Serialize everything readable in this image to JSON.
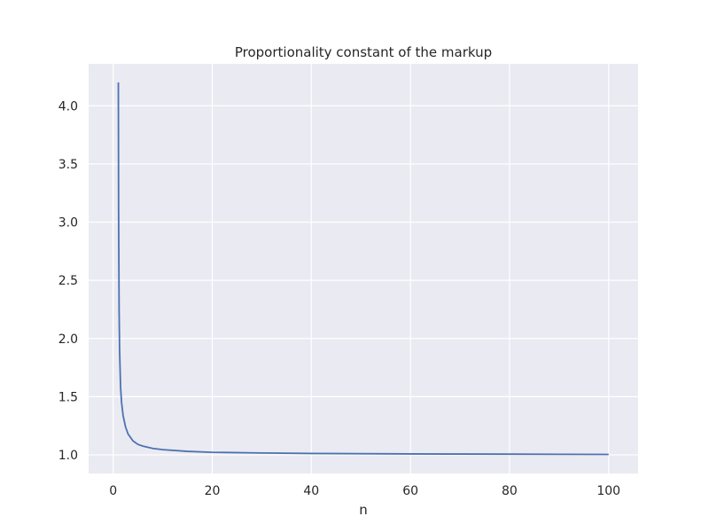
{
  "chart_data": {
    "type": "line",
    "title": "Proportionality constant of the markup",
    "xlabel": "n",
    "ylabel": "",
    "xlim": [
      -4.95,
      105.95
    ],
    "ylim": [
      0.84,
      4.36
    ],
    "xticks": [
      0,
      20,
      40,
      60,
      80,
      100
    ],
    "yticks": [
      1.0,
      1.5,
      2.0,
      2.5,
      3.0,
      3.5,
      4.0
    ],
    "xtick_labels": [
      "0",
      "20",
      "40",
      "60",
      "80",
      "100"
    ],
    "ytick_labels": [
      "1.0",
      "1.5",
      "2.0",
      "2.5",
      "3.0",
      "3.5",
      "4.0"
    ],
    "grid": true,
    "legend": "none",
    "colors": {
      "plot_background": "#eaeaf2",
      "grid": "#ffffff",
      "line": "#4c72b0",
      "text": "#262626"
    },
    "series": [
      {
        "x": [
          1.05,
          1.1,
          1.2,
          1.3,
          1.5,
          1.7,
          2,
          2.5,
          3,
          4,
          5,
          6,
          8,
          10,
          15,
          20,
          30,
          40,
          50,
          60,
          70,
          80,
          90,
          100
        ],
        "y": [
          4.2,
          3.1,
          2.25,
          1.9,
          1.58,
          1.45,
          1.34,
          1.24,
          1.18,
          1.12,
          1.09,
          1.075,
          1.055,
          1.045,
          1.03,
          1.022,
          1.016,
          1.012,
          1.01,
          1.008,
          1.007,
          1.006,
          1.005,
          1.004
        ]
      }
    ]
  }
}
